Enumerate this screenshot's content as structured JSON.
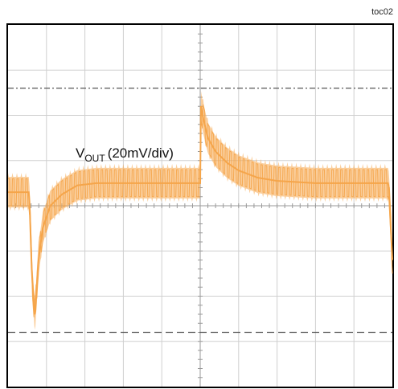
{
  "figure_tag": "toc02",
  "chart_data": {
    "type": "line",
    "title": "",
    "xlabel": "",
    "ylabel": "",
    "grid": true,
    "grid_divisions": {
      "x": 10,
      "y": 8
    },
    "trace_color": "#f5a54a",
    "channel_label": {
      "main": "V",
      "subscript": "OUT",
      "scale": "(20mV/div)"
    },
    "xlim": [
      0,
      10
    ],
    "ylim": [
      -4,
      4
    ],
    "reference_levels": {
      "upper": 2.6,
      "lower": -2.8
    },
    "series": [
      {
        "x": [
          0.0,
          0.55,
          0.62,
          0.7,
          0.78,
          0.9,
          1.1,
          1.4,
          1.8,
          2.3,
          3.0,
          4.0,
          5.0,
          5.0,
          5.06,
          5.2,
          5.4,
          5.7,
          6.0,
          6.5,
          7.0,
          8.0,
          9.0,
          9.9,
          10.0
        ],
        "y": [
          0.3,
          0.3,
          -1.5,
          -2.5,
          -1.3,
          -0.5,
          0.0,
          0.25,
          0.45,
          0.5,
          0.5,
          0.5,
          0.5,
          2.3,
          2.0,
          1.5,
          1.2,
          0.95,
          0.78,
          0.62,
          0.55,
          0.5,
          0.5,
          0.5,
          -1.2
        ],
        "ripple_amplitude": 0.75
      }
    ]
  }
}
